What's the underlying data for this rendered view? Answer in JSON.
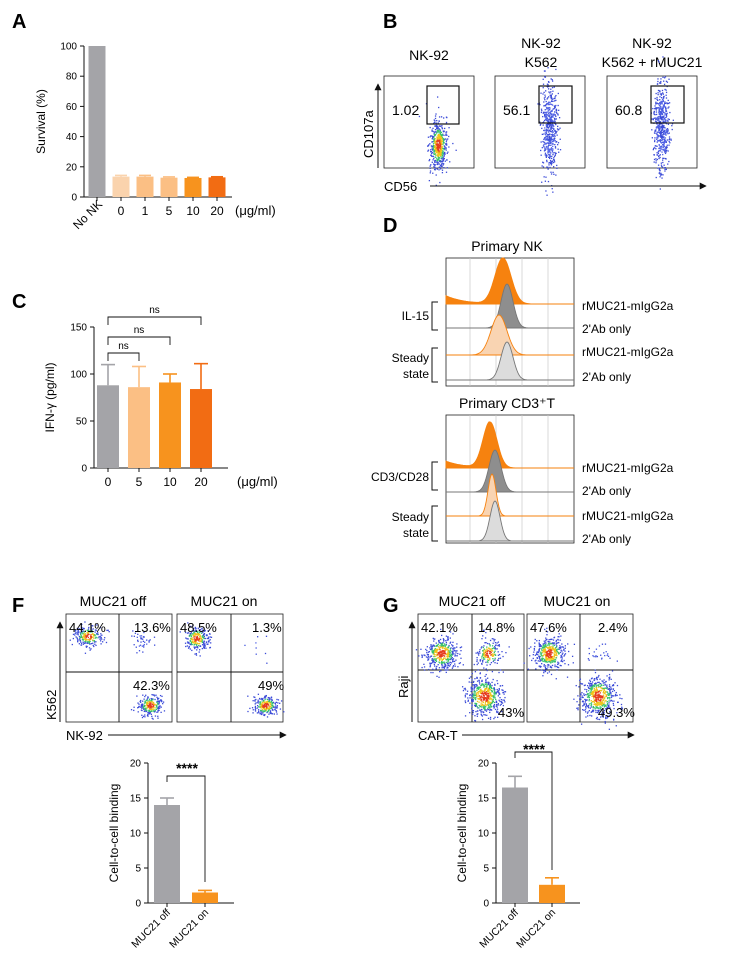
{
  "colors": {
    "gray": "#a4a4a8",
    "orange_very_light": "#fad3ad",
    "orange_light": "#fbbf84",
    "orange": "#f7931e",
    "orange_dark": "#f26c13",
    "hist_orange": "#f6820f",
    "hist_gray": "#8e8e8e",
    "hist_peach": "#f9d4b2",
    "hist_lightgray": "#dcdcdc"
  },
  "panels": {
    "A": "A",
    "B": "B",
    "C": "C",
    "D": "D",
    "F": "F",
    "G": "G"
  },
  "panelB": {
    "titles": [
      [
        "NK-92"
      ],
      [
        "NK-92",
        "K562"
      ],
      [
        "NK-92",
        "K562 + rMUC21"
      ]
    ],
    "gate_values": [
      "1.02",
      "56.1",
      "60.8"
    ],
    "ylabel": "CD107a",
    "xlabel": "CD56"
  },
  "panelD": {
    "top_title": "Primary NK",
    "bottom_title": "Primary CD3⁺T",
    "top_groups": [
      "IL-15",
      "Steady",
      "state"
    ],
    "bottom_groups": [
      "CD3/CD28",
      "Steady",
      "state"
    ],
    "row_labels": [
      "rMUC21-mIgG2a",
      "2'Ab only",
      "rMUC21-mIgG2a",
      "2'Ab only"
    ]
  },
  "panelF": {
    "titles": [
      "MUC21 off",
      "MUC21 on"
    ],
    "quad_values": [
      [
        "44.1%",
        "13.6%",
        "42.3%"
      ],
      [
        "48.5%",
        "1.3%",
        "49%"
      ]
    ],
    "ylabel": "K562",
    "xlabel": "NK-92"
  },
  "panelG": {
    "titles": [
      "MUC21 off",
      "MUC21 on"
    ],
    "quad_values": [
      [
        "42.1%",
        "14.8%",
        "43%"
      ],
      [
        "47.6%",
        "2.4%",
        "49.3%"
      ]
    ],
    "ylabel": "Raji",
    "xlabel": "CAR-T"
  },
  "chart_data": [
    {
      "id": "A",
      "type": "bar",
      "categories": [
        "No NK",
        "0",
        "1",
        "5",
        "10",
        "20"
      ],
      "values": [
        100,
        13.5,
        13.5,
        12.8,
        12.6,
        13
      ],
      "errors": [
        0,
        0.8,
        0.8,
        0.5,
        0.4,
        0.4
      ],
      "title": "",
      "xlabel": "",
      "xunit": "(μg/ml)",
      "ylabel": "Survival (%)",
      "ylim": [
        0,
        100
      ],
      "yticks": [
        0,
        20,
        40,
        60,
        80,
        100
      ]
    },
    {
      "id": "C",
      "type": "bar",
      "categories": [
        "0",
        "5",
        "10",
        "20"
      ],
      "values": [
        88,
        86,
        91,
        84
      ],
      "errors": [
        22,
        22,
        9,
        27
      ],
      "xlabel": "",
      "xunit": "(μg/ml)",
      "ylabel": "IFN-γ (pg/ml)",
      "ylim": [
        0,
        150
      ],
      "yticks": [
        0,
        50,
        100,
        150
      ],
      "annotations": [
        "ns",
        "ns",
        "ns"
      ]
    },
    {
      "id": "F",
      "type": "bar",
      "categories": [
        "MUC21 off",
        "MUC21 on"
      ],
      "values": [
        14,
        1.5
      ],
      "errors": [
        1,
        0.3
      ],
      "ylabel": "Cell-to-cell binding",
      "ylim": [
        0,
        20
      ],
      "yticks": [
        0,
        5,
        10,
        15,
        20
      ],
      "annotations": [
        "****"
      ]
    },
    {
      "id": "G",
      "type": "bar",
      "categories": [
        "MUC21 off",
        "MUC21 on"
      ],
      "values": [
        16.5,
        2.6
      ],
      "errors": [
        1.6,
        1
      ],
      "ylabel": "Cell-to-cell binding",
      "ylim": [
        0,
        20
      ],
      "yticks": [
        0,
        5,
        10,
        15,
        20
      ],
      "annotations": [
        "****"
      ]
    }
  ]
}
